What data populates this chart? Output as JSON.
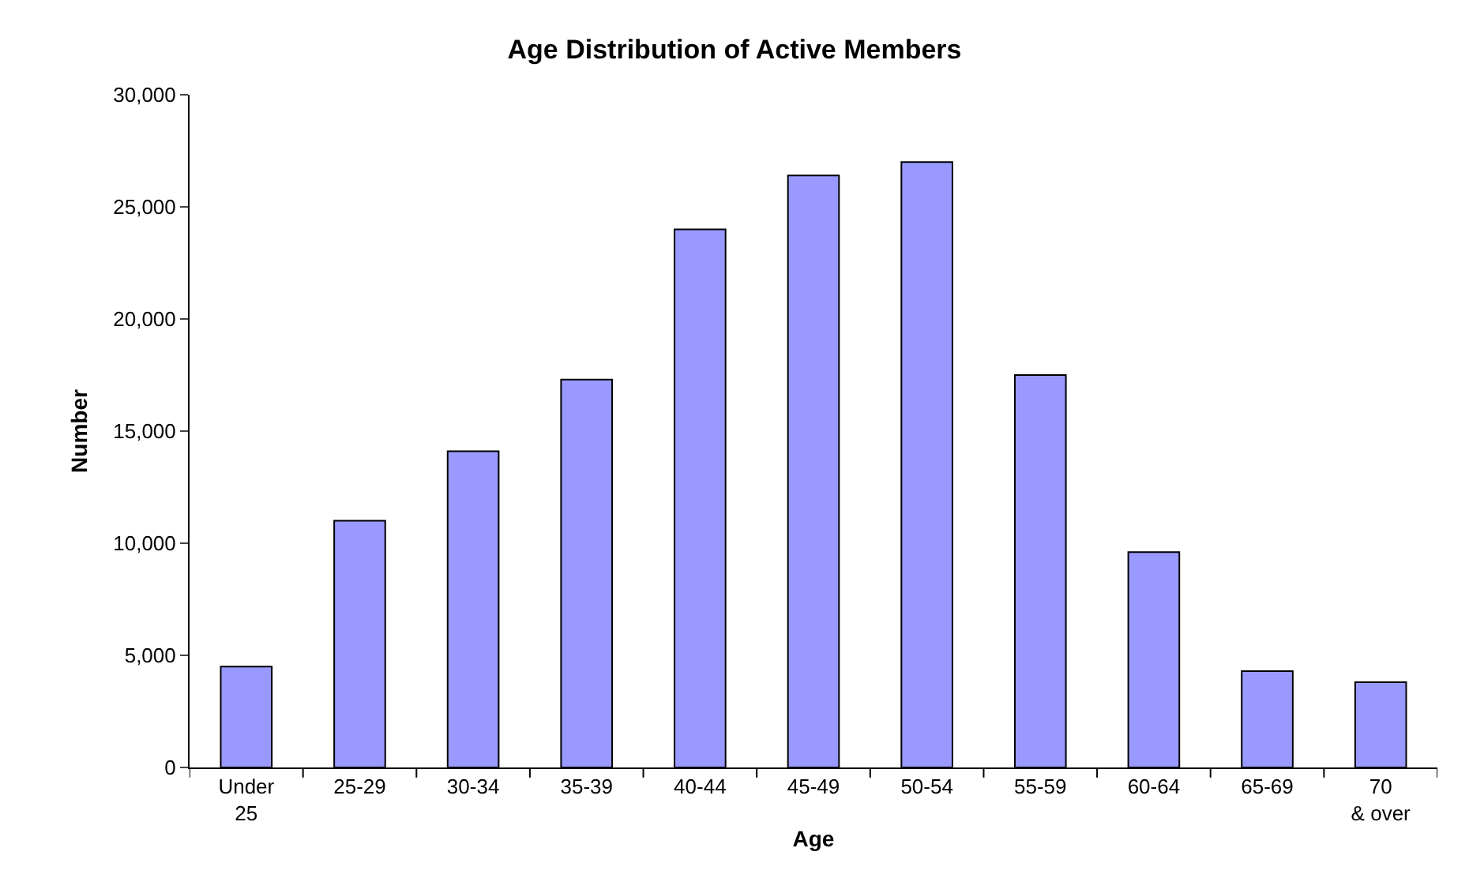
{
  "chart_data": {
    "type": "bar",
    "title": "Age Distribution of Active Members",
    "xlabel": "Age",
    "ylabel": "Number",
    "categories": [
      "Under 25",
      "25-29",
      "30-34",
      "35-39",
      "40-44",
      "45-49",
      "50-54",
      "55-59",
      "60-64",
      "65-69",
      "70 & over"
    ],
    "values": [
      4500,
      11000,
      14100,
      17300,
      24000,
      26400,
      27000,
      17500,
      9600,
      4300,
      3800
    ],
    "color": "#9999ff",
    "ylim": [
      0,
      30000
    ],
    "yticks": [
      {
        "value": 0,
        "label": "0"
      },
      {
        "value": 5000,
        "label": "5,000"
      },
      {
        "value": 10000,
        "label": "10,000"
      },
      {
        "value": 15000,
        "label": "15,000"
      },
      {
        "value": 20000,
        "label": "20,000"
      },
      {
        "value": 25000,
        "label": "25,000"
      },
      {
        "value": 30000,
        "label": "30,000"
      }
    ],
    "grid": false
  }
}
